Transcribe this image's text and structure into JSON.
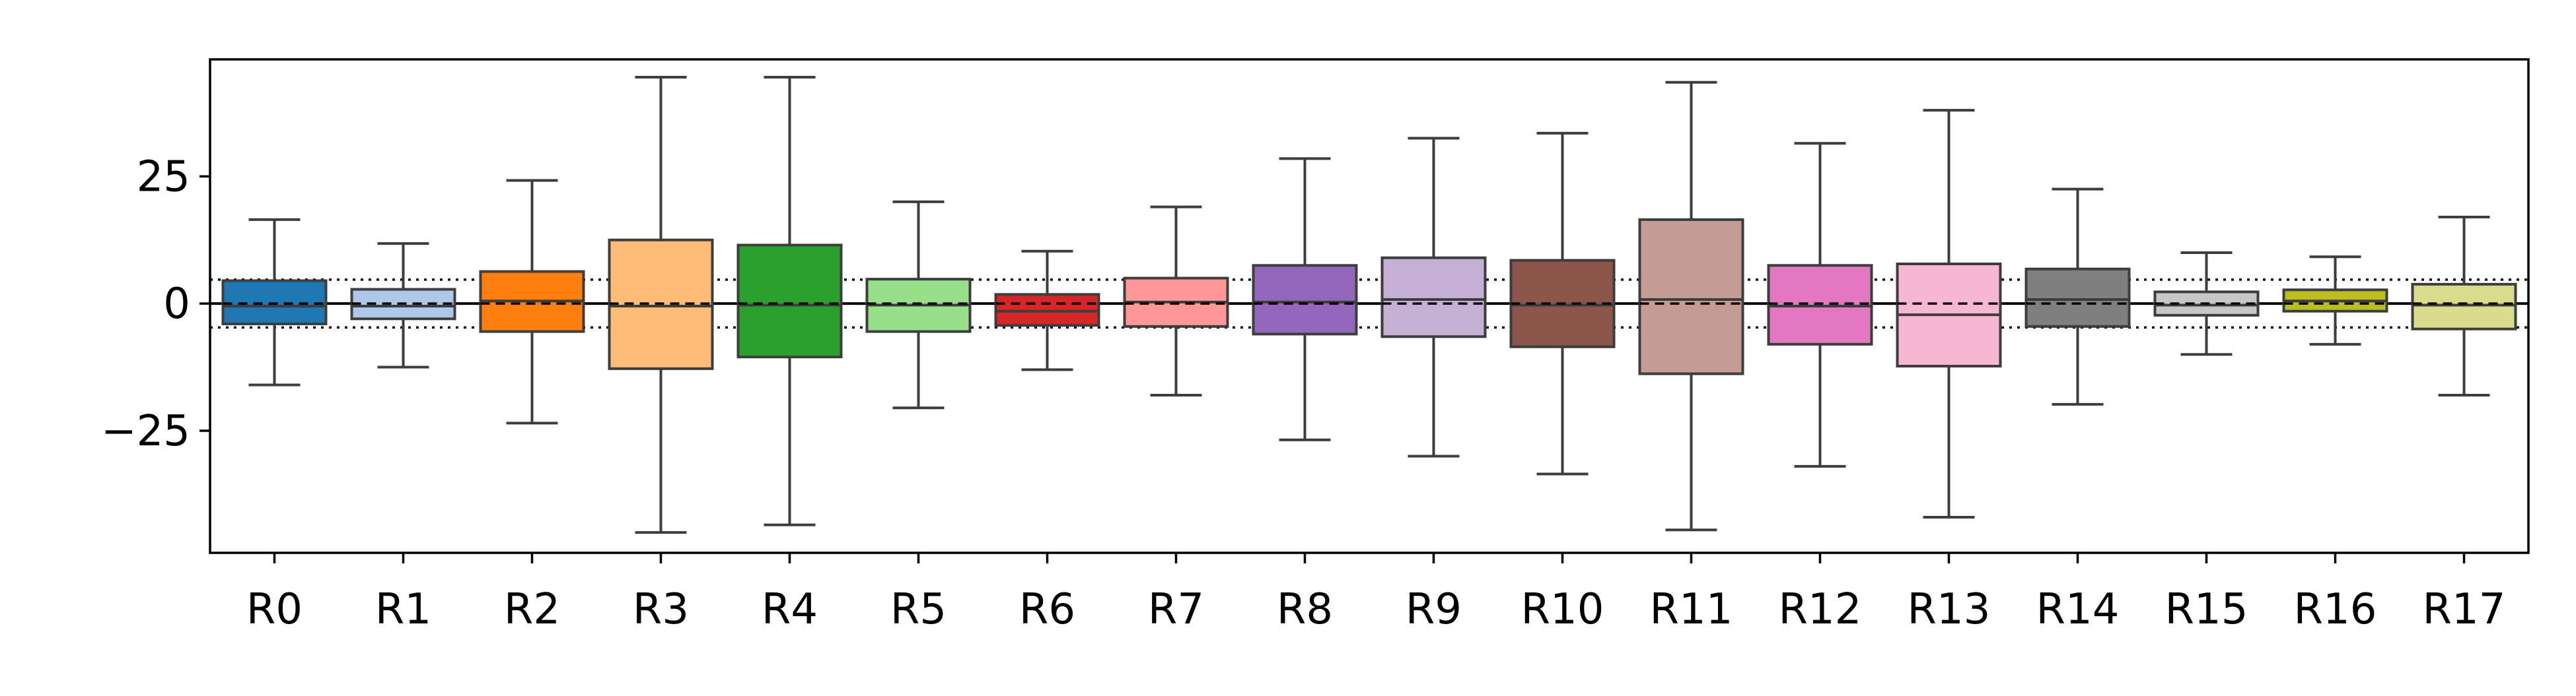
{
  "chart_data": {
    "type": "box",
    "title": "",
    "xlabel": "",
    "ylabel": "",
    "ylim": [
      -49,
      48
    ],
    "yticks": [
      -25,
      0,
      25
    ],
    "ytick_labels": [
      "−25",
      "0",
      "25"
    ],
    "reference_lines": [
      {
        "y": 0,
        "style": "solid"
      },
      {
        "y": 4.7,
        "style": "dotted"
      },
      {
        "y": -4.7,
        "style": "dotted"
      }
    ],
    "categories": [
      "R0",
      "R1",
      "R2",
      "R3",
      "R4",
      "R5",
      "R6",
      "R7",
      "R8",
      "R9",
      "R10",
      "R11",
      "R12",
      "R13",
      "R14",
      "R15",
      "R16",
      "R17"
    ],
    "boxes": [
      {
        "label": "R0",
        "color": "#1f77b4",
        "whislo": -16,
        "q1": -4,
        "median": -0.5,
        "q3": 4.5,
        "whishi": 16.5,
        "mean": 0
      },
      {
        "label": "R1",
        "color": "#aec7e8",
        "whislo": -12.5,
        "q1": -3,
        "median": -0.5,
        "q3": 2.8,
        "whishi": 11.8,
        "mean": 0
      },
      {
        "label": "R2",
        "color": "#ff7f0e",
        "whislo": -23.5,
        "q1": -5.5,
        "median": 0.5,
        "q3": 6.3,
        "whishi": 24.2,
        "mean": 0
      },
      {
        "label": "R3",
        "color": "#ffbb78",
        "whislo": -45,
        "q1": -12.8,
        "median": -0.5,
        "q3": 12.5,
        "whishi": 44.5,
        "mean": 0
      },
      {
        "label": "R4",
        "color": "#2ca02c",
        "whislo": -43.5,
        "q1": -10.5,
        "median": -0.3,
        "q3": 11.5,
        "whishi": 44.5,
        "mean": 0
      },
      {
        "label": "R5",
        "color": "#98df8a",
        "whislo": -20.5,
        "q1": -5.5,
        "median": -0.3,
        "q3": 4.8,
        "whishi": 20,
        "mean": 0
      },
      {
        "label": "R6",
        "color": "#d62728",
        "whislo": -13,
        "q1": -4.3,
        "median": -1.5,
        "q3": 1.8,
        "whishi": 10.3,
        "mean": 0
      },
      {
        "label": "R7",
        "color": "#ff9896",
        "whislo": -18,
        "q1": -4.5,
        "median": 0.3,
        "q3": 5,
        "whishi": 19,
        "mean": 0
      },
      {
        "label": "R8",
        "color": "#9467bd",
        "whislo": -26.8,
        "q1": -6,
        "median": 0.3,
        "q3": 7.5,
        "whishi": 28.5,
        "mean": 0
      },
      {
        "label": "R9",
        "color": "#c5b0d5",
        "whislo": -30,
        "q1": -6.5,
        "median": 0.8,
        "q3": 9,
        "whishi": 32.5,
        "mean": 0
      },
      {
        "label": "R10",
        "color": "#8c564b",
        "whislo": -33.5,
        "q1": -8.5,
        "median": -0.3,
        "q3": 8.5,
        "whishi": 33.5,
        "mean": 0
      },
      {
        "label": "R11",
        "color": "#c49c94",
        "whislo": -44.5,
        "q1": -13.8,
        "median": 0.8,
        "q3": 16.5,
        "whishi": 43.5,
        "mean": 0
      },
      {
        "label": "R12",
        "color": "#e377c2",
        "whislo": -32,
        "q1": -8,
        "median": -0.5,
        "q3": 7.5,
        "whishi": 31.5,
        "mean": 0
      },
      {
        "label": "R13",
        "color": "#f7b6d2",
        "whislo": -42,
        "q1": -12.3,
        "median": -2.2,
        "q3": 7.8,
        "whishi": 38,
        "mean": 0
      },
      {
        "label": "R14",
        "color": "#7f7f7f",
        "whislo": -19.8,
        "q1": -4.5,
        "median": 0.8,
        "q3": 6.8,
        "whishi": 22.5,
        "mean": 0
      },
      {
        "label": "R15",
        "color": "#c7c7c7",
        "whislo": -10,
        "q1": -2.3,
        "median": -0.3,
        "q3": 2.3,
        "whishi": 10,
        "mean": 0
      },
      {
        "label": "R16",
        "color": "#bcbd22",
        "whislo": -8,
        "q1": -1.5,
        "median": 0.5,
        "q3": 2.7,
        "whishi": 9.2,
        "mean": 0
      },
      {
        "label": "R17",
        "color": "#dbdb8d",
        "whislo": -18,
        "q1": -5,
        "median": -0.3,
        "q3": 3.8,
        "whishi": 17,
        "mean": 0
      }
    ]
  }
}
